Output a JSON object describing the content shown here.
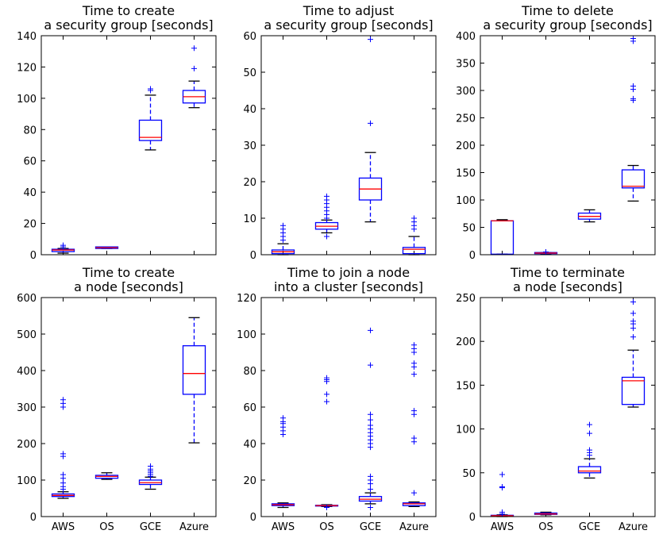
{
  "chart_data": [
    {
      "type": "box",
      "title": [
        "Time to create",
        "a security group [seconds]"
      ],
      "ylim": [
        0,
        140
      ],
      "yticks": [
        0,
        20,
        40,
        60,
        80,
        100,
        120,
        140
      ],
      "categories": [
        "AWS",
        "OS",
        "GCE",
        "Azure"
      ],
      "show_xlabels": false,
      "boxes": [
        {
          "category": "AWS",
          "whisker_low": 1,
          "q1": 2,
          "median": 3,
          "q3": 3.5,
          "whisker_high": 4,
          "outliers": [
            5,
            6
          ]
        },
        {
          "category": "OS",
          "whisker_low": 4,
          "q1": 4,
          "median": 4.5,
          "q3": 5,
          "whisker_high": 5,
          "outliers": []
        },
        {
          "category": "GCE",
          "whisker_low": 67,
          "q1": 73,
          "median": 75,
          "q3": 86,
          "whisker_high": 102,
          "outliers": [
            105,
            106
          ]
        },
        {
          "category": "Azure",
          "whisker_low": 94,
          "q1": 97,
          "median": 101,
          "q3": 105,
          "whisker_high": 111,
          "outliers": [
            119,
            132
          ]
        }
      ]
    },
    {
      "type": "box",
      "title": [
        "Time to adjust",
        "a security group [seconds]"
      ],
      "ylim": [
        0,
        60
      ],
      "yticks": [
        0,
        10,
        20,
        30,
        40,
        50,
        60
      ],
      "categories": [
        "AWS",
        "OS",
        "GCE",
        "Azure"
      ],
      "show_xlabels": false,
      "boxes": [
        {
          "category": "AWS",
          "whisker_low": 0,
          "q1": 0.3,
          "median": 0.8,
          "q3": 1.3,
          "whisker_high": 3,
          "outliers": [
            4,
            5,
            6,
            7,
            8
          ]
        },
        {
          "category": "OS",
          "whisker_low": 6,
          "q1": 7,
          "median": 7.8,
          "q3": 8.8,
          "whisker_high": 9.5,
          "outliers": [
            5,
            10,
            11,
            12,
            13,
            14,
            15,
            16
          ]
        },
        {
          "category": "GCE",
          "whisker_low": 9,
          "q1": 15,
          "median": 18,
          "q3": 21,
          "whisker_high": 28,
          "outliers": [
            36,
            59
          ]
        },
        {
          "category": "Azure",
          "whisker_low": 0,
          "q1": 0.3,
          "median": 1.5,
          "q3": 2,
          "whisker_high": 5,
          "outliers": [
            7,
            8,
            9,
            10
          ]
        }
      ]
    },
    {
      "type": "box",
      "title": [
        "Time to delete",
        "a security group [seconds]"
      ],
      "ylim": [
        0,
        400
      ],
      "yticks": [
        0,
        50,
        100,
        150,
        200,
        250,
        300,
        350,
        400
      ],
      "categories": [
        "AWS",
        "OS",
        "GCE",
        "Azure"
      ],
      "show_xlabels": false,
      "boxes": [
        {
          "category": "AWS",
          "whisker_low": 1,
          "q1": 1,
          "median": 62,
          "q3": 62,
          "whisker_high": 64,
          "outliers": []
        },
        {
          "category": "OS",
          "whisker_low": 1,
          "q1": 2,
          "median": 3,
          "q3": 4,
          "whisker_high": 4,
          "outliers": [
            5
          ]
        },
        {
          "category": "GCE",
          "whisker_low": 60,
          "q1": 65,
          "median": 70,
          "q3": 76,
          "whisker_high": 82,
          "outliers": []
        },
        {
          "category": "Azure",
          "whisker_low": 98,
          "q1": 122,
          "median": 125,
          "q3": 155,
          "whisker_high": 163,
          "outliers": [
            282,
            285,
            302,
            308,
            390,
            395
          ]
        }
      ]
    },
    {
      "type": "box",
      "title": [
        "Time to create",
        "a node [seconds]"
      ],
      "ylim": [
        0,
        600
      ],
      "yticks": [
        0,
        100,
        200,
        300,
        400,
        500,
        600
      ],
      "categories": [
        "AWS",
        "OS",
        "GCE",
        "Azure"
      ],
      "show_xlabels": true,
      "boxes": [
        {
          "category": "AWS",
          "whisker_low": 50,
          "q1": 55,
          "median": 58,
          "q3": 62,
          "whisker_high": 68,
          "outliers": [
            75,
            82,
            92,
            105,
            115,
            165,
            172,
            300,
            310,
            320
          ]
        },
        {
          "category": "OS",
          "whisker_low": 102,
          "q1": 105,
          "median": 110,
          "q3": 113,
          "whisker_high": 120,
          "outliers": []
        },
        {
          "category": "GCE",
          "whisker_low": 75,
          "q1": 88,
          "median": 93,
          "q3": 100,
          "whisker_high": 108,
          "outliers": [
            110,
            115,
            120,
            125,
            130,
            138
          ]
        },
        {
          "category": "Azure",
          "whisker_low": 202,
          "q1": 335,
          "median": 392,
          "q3": 468,
          "whisker_high": 545,
          "outliers": []
        }
      ]
    },
    {
      "type": "box",
      "title": [
        "Time to join a node",
        "into a cluster [seconds]"
      ],
      "ylim": [
        0,
        120
      ],
      "yticks": [
        0,
        20,
        40,
        60,
        80,
        100,
        120
      ],
      "categories": [
        "AWS",
        "OS",
        "GCE",
        "Azure"
      ],
      "show_xlabels": true,
      "boxes": [
        {
          "category": "AWS",
          "whisker_low": 5,
          "q1": 6,
          "median": 6.5,
          "q3": 7,
          "whisker_high": 7.5,
          "outliers": [
            45,
            47,
            49,
            51,
            52,
            54
          ]
        },
        {
          "category": "OS",
          "whisker_low": 5.5,
          "q1": 5.8,
          "median": 6,
          "q3": 6.2,
          "whisker_high": 6.5,
          "outliers": [
            5,
            63,
            67,
            74,
            75,
            76
          ]
        },
        {
          "category": "GCE",
          "whisker_low": 7,
          "q1": 8.5,
          "median": 9.5,
          "q3": 11,
          "whisker_high": 13,
          "outliers": [
            5,
            15,
            18,
            20,
            22,
            38,
            40,
            42,
            44,
            46,
            48,
            50,
            53,
            56,
            83,
            102
          ]
        },
        {
          "category": "Azure",
          "whisker_low": 5.5,
          "q1": 6,
          "median": 7,
          "q3": 7.5,
          "whisker_high": 8,
          "outliers": [
            13,
            41,
            43,
            56,
            58,
            78,
            82,
            84,
            90,
            92,
            94
          ]
        }
      ]
    },
    {
      "type": "box",
      "title": [
        "Time to terminate",
        "a node [seconds]"
      ],
      "ylim": [
        0,
        250
      ],
      "yticks": [
        0,
        50,
        100,
        150,
        200,
        250
      ],
      "categories": [
        "AWS",
        "OS",
        "GCE",
        "Azure"
      ],
      "show_xlabels": true,
      "boxes": [
        {
          "category": "AWS",
          "whisker_low": 0,
          "q1": 0.5,
          "median": 1,
          "q3": 1.5,
          "whisker_high": 2,
          "outliers": [
            3,
            5,
            33,
            34,
            48
          ]
        },
        {
          "category": "OS",
          "whisker_low": 2,
          "q1": 2.5,
          "median": 3,
          "q3": 4,
          "whisker_high": 5,
          "outliers": []
        },
        {
          "category": "GCE",
          "whisker_low": 44,
          "q1": 50,
          "median": 52,
          "q3": 57,
          "whisker_high": 66,
          "outliers": [
            70,
            73,
            76,
            95,
            105
          ]
        },
        {
          "category": "Azure",
          "whisker_low": 125,
          "q1": 128,
          "median": 155,
          "q3": 159,
          "whisker_high": 190,
          "outliers": [
            205,
            215,
            220,
            223,
            232,
            245
          ]
        }
      ]
    }
  ],
  "colors": {
    "box": "#0000ff",
    "median": "#ff0000",
    "whisker_cap": "#000000",
    "flier": "#0000ff",
    "axes": "#000000"
  }
}
